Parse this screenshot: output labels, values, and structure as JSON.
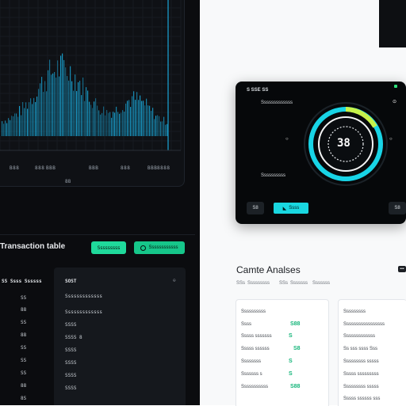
{
  "chart_panel": {
    "tick_labels": [
      "B88",
      "888",
      "BBB",
      "BBB",
      "888",
      "BBB",
      "8888"
    ],
    "sub_label": "88",
    "accent_color": "#1aa7d8"
  },
  "transactions": {
    "title": "Transaction table",
    "btn_primary": "Sssssssss",
    "btn_secondary": "Ssssssssssss",
    "left_header": "SS Ssss Ssssss",
    "left_rows": [
      "SS",
      "88",
      "SS",
      "88",
      "SS",
      "SS",
      "SS",
      "88",
      "8S"
    ],
    "right_header": "SOST",
    "right_rows": [
      "Sssssssssssss",
      "Sssssssssssss",
      "SSSS",
      "SSSS  8",
      "SSSS",
      "SSSS",
      "SSSS",
      "SSSS"
    ]
  },
  "gauge_card": {
    "title": "S SSE SS",
    "label_top": "Sssssssssssss",
    "label_bottom": "Ssssssssss",
    "center_value": "38",
    "btn_left": "S8",
    "btn_cyan": "Ssss",
    "btn_right": "S8",
    "colors": {
      "ring": "#18d4e6",
      "accent": "#c6f24a",
      "bg": "#06080a"
    }
  },
  "analytics": {
    "title": "Camte Analses",
    "subtitles": [
      "SSs",
      "Sssssssss",
      "SSs",
      "Sssssss",
      "Sssssss"
    ],
    "card1": {
      "header": "Ssssssssss",
      "rows": [
        {
          "label": "Ssss",
          "value": "S88"
        },
        {
          "label": "Sssss sssssss",
          "value": "S"
        },
        {
          "label": "Sssss ssssss",
          "value": "S8"
        },
        {
          "label": "Ssssssss",
          "value": "S"
        },
        {
          "label": "Sssssss   s",
          "value": "S"
        },
        {
          "label": "Sssssssssss",
          "value": "S88"
        }
      ]
    },
    "card2": {
      "header": "Sssssssss",
      "rows": [
        "Sssssssssssssssss",
        "Sssssssssssss",
        "Ss sss ssss Sss",
        "Sssssssss sssss",
        "Sssss sssssssss",
        "Sssssssss sssss",
        "Sssss ssssss sss"
      ]
    }
  }
}
